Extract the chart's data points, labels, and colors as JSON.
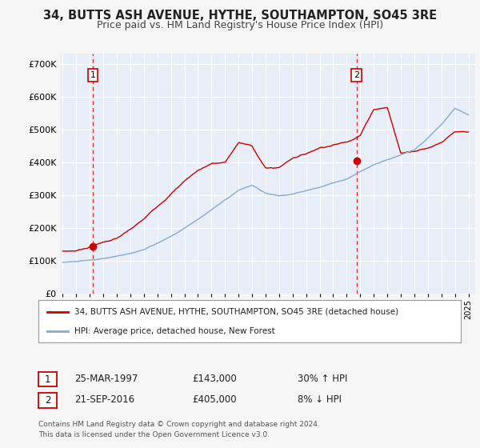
{
  "title": "34, BUTTS ASH AVENUE, HYTHE, SOUTHAMPTON, SO45 3RE",
  "subtitle": "Price paid vs. HM Land Registry's House Price Index (HPI)",
  "title_fontsize": 10.5,
  "subtitle_fontsize": 9,
  "legend_line1": "34, BUTTS ASH AVENUE, HYTHE, SOUTHAMPTON, SO45 3RE (detached house)",
  "legend_line2": "HPI: Average price, detached house, New Forest",
  "footer1": "Contains HM Land Registry data © Crown copyright and database right 2024.",
  "footer2": "This data is licensed under the Open Government Licence v3.0.",
  "sale1_date": "25-MAR-1997",
  "sale1_price": "£143,000",
  "sale1_hpi": "30% ↑ HPI",
  "sale1_x": 1997.22,
  "sale1_y": 143000,
  "sale2_date": "21-SEP-2016",
  "sale2_price": "£405,000",
  "sale2_hpi": "8% ↓ HPI",
  "sale2_x": 2016.72,
  "sale2_y": 405000,
  "vline1_x": 1997.22,
  "vline2_x": 2016.72,
  "xlim": [
    1994.8,
    2025.5
  ],
  "ylim": [
    0,
    730000
  ],
  "yticks": [
    0,
    100000,
    200000,
    300000,
    400000,
    500000,
    600000,
    700000
  ],
  "ytick_labels": [
    "£0",
    "£100K",
    "£200K",
    "£300K",
    "£400K",
    "£500K",
    "£600K",
    "£700K"
  ],
  "xticks": [
    1995,
    1996,
    1997,
    1998,
    1999,
    2000,
    2001,
    2002,
    2003,
    2004,
    2005,
    2006,
    2007,
    2008,
    2009,
    2010,
    2011,
    2012,
    2013,
    2014,
    2015,
    2016,
    2017,
    2018,
    2019,
    2020,
    2021,
    2022,
    2023,
    2024,
    2025
  ],
  "line_color_red": "#cc0000",
  "line_color_blue": "#88aacc",
  "vline_color": "#cc0000",
  "marker_color": "#cc0000",
  "plot_bg_color": "#e8eef8",
  "fig_bg_color": "#f5f5f5",
  "grid_color": "#ffffff",
  "box_color": "#cc0000",
  "hpi_base": [
    95000,
    97000,
    100000,
    104000,
    111000,
    120000,
    132000,
    150000,
    170000,
    196000,
    222000,
    252000,
    282000,
    312000,
    328000,
    302000,
    293000,
    298000,
    308000,
    318000,
    332000,
    344000,
    366000,
    388000,
    403000,
    418000,
    433000,
    472000,
    512000,
    562000,
    542000
  ],
  "price_base": [
    128000,
    130000,
    143000,
    158000,
    170000,
    195000,
    225000,
    265000,
    305000,
    345000,
    378000,
    400000,
    402000,
    463000,
    452000,
    385000,
    387000,
    418000,
    432000,
    452000,
    462000,
    472000,
    495000,
    575000,
    582000,
    442000,
    452000,
    462000,
    482000,
    512000,
    507000
  ]
}
